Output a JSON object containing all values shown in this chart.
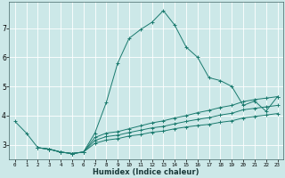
{
  "xlabel": "Humidex (Indice chaleur)",
  "bg_color": "#cce8e8",
  "grid_color": "#ffffff",
  "line_color": "#1a7a6e",
  "xlim": [
    -0.5,
    23.5
  ],
  "ylim": [
    2.5,
    7.9
  ],
  "yticks": [
    3,
    4,
    5,
    6,
    7
  ],
  "xticks": [
    0,
    1,
    2,
    3,
    4,
    5,
    6,
    7,
    8,
    9,
    10,
    11,
    12,
    13,
    14,
    15,
    16,
    17,
    18,
    19,
    20,
    21,
    22,
    23
  ],
  "series": [
    {
      "x": [
        0,
        1,
        2,
        3,
        4,
        5,
        6,
        7,
        8,
        9,
        10,
        11,
        12,
        13,
        14,
        15,
        16,
        17,
        18,
        19,
        20,
        21,
        22,
        23
      ],
      "y": [
        3.8,
        3.4,
        2.9,
        2.85,
        2.75,
        2.7,
        2.75,
        3.4,
        4.45,
        5.8,
        6.65,
        6.95,
        7.2,
        7.6,
        7.1,
        6.35,
        6.0,
        5.3,
        5.2,
        5.0,
        4.35,
        4.5,
        4.15,
        4.65
      ]
    },
    {
      "x": [
        2,
        3,
        4,
        5,
        6,
        7,
        8,
        9,
        10,
        11,
        12,
        13,
        14,
        15,
        16,
        17,
        18,
        19,
        20,
        21,
        22,
        23
      ],
      "y": [
        2.9,
        2.85,
        2.75,
        2.7,
        2.75,
        3.25,
        3.4,
        3.45,
        3.55,
        3.65,
        3.75,
        3.82,
        3.92,
        4.0,
        4.1,
        4.18,
        4.28,
        4.35,
        4.48,
        4.55,
        4.6,
        4.65
      ]
    },
    {
      "x": [
        2,
        3,
        4,
        5,
        6,
        7,
        8,
        9,
        10,
        11,
        12,
        13,
        14,
        15,
        16,
        17,
        18,
        19,
        20,
        21,
        22,
        23
      ],
      "y": [
        2.9,
        2.85,
        2.75,
        2.7,
        2.75,
        3.15,
        3.28,
        3.33,
        3.42,
        3.5,
        3.58,
        3.63,
        3.72,
        3.8,
        3.87,
        3.93,
        4.02,
        4.08,
        4.2,
        4.25,
        4.3,
        4.35
      ]
    },
    {
      "x": [
        2,
        3,
        4,
        5,
        6,
        7,
        8,
        9,
        10,
        11,
        12,
        13,
        14,
        15,
        16,
        17,
        18,
        19,
        20,
        21,
        22,
        23
      ],
      "y": [
        2.9,
        2.85,
        2.75,
        2.7,
        2.75,
        3.05,
        3.16,
        3.21,
        3.3,
        3.35,
        3.43,
        3.47,
        3.55,
        3.61,
        3.66,
        3.7,
        3.77,
        3.82,
        3.92,
        3.97,
        4.02,
        4.07
      ]
    }
  ]
}
